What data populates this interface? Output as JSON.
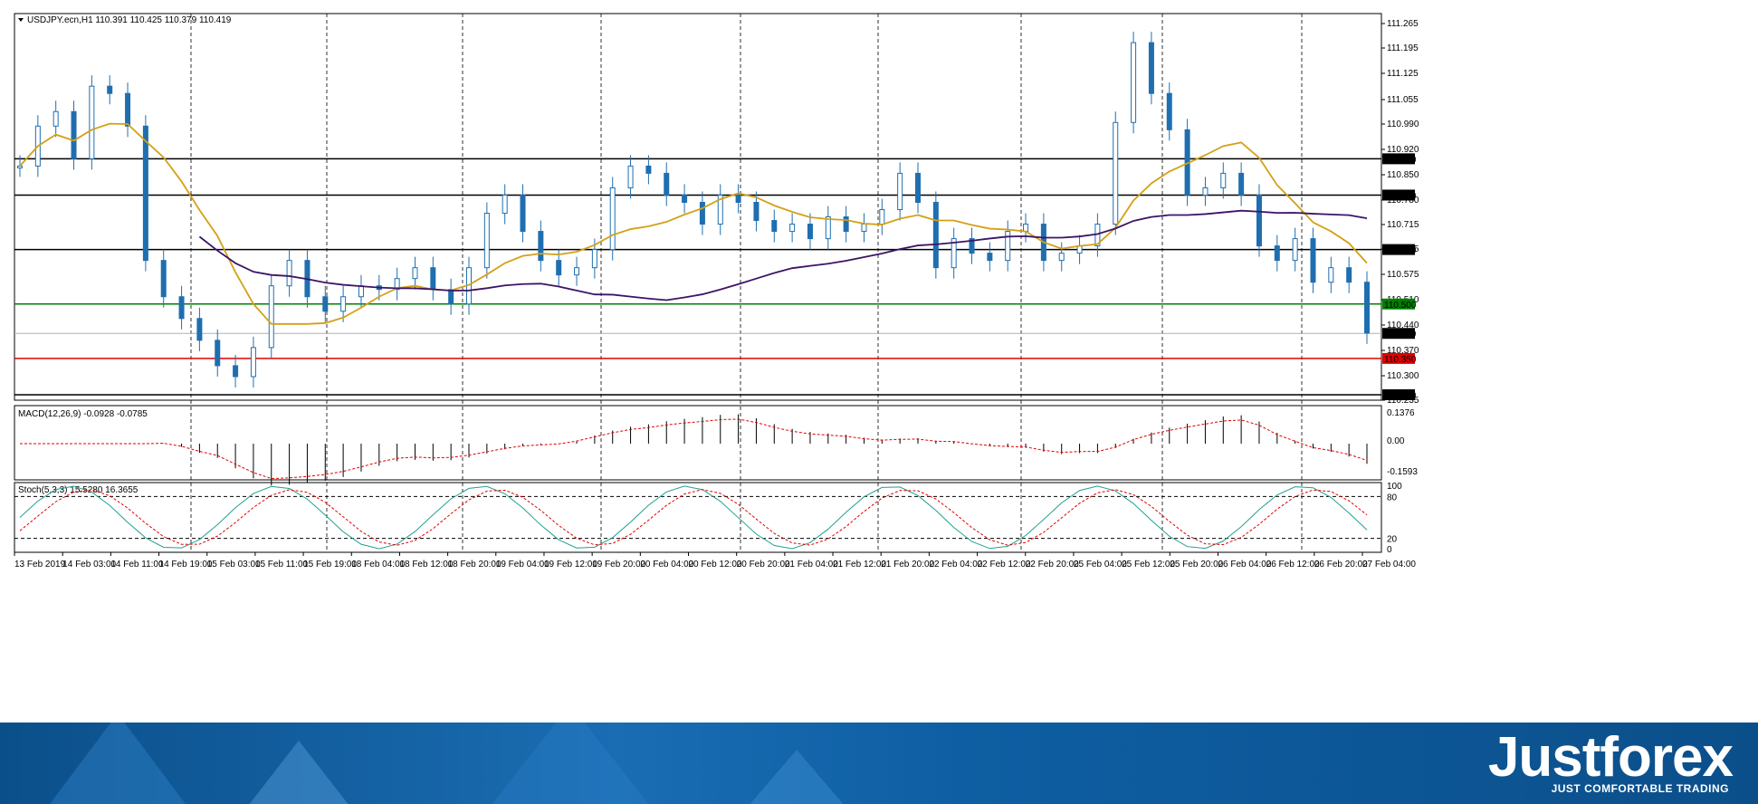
{
  "symbol_header": "USDJPY.ecn,H1  110.391 110.425 110.379 110.419",
  "price_axis": {
    "labels": [
      "111.265",
      "111.195",
      "111.125",
      "111.055",
      "110.990",
      "110.920",
      "110.850",
      "110.780",
      "110.715",
      "110.645",
      "110.575",
      "110.510",
      "110.440",
      "110.370",
      "110.300",
      "110.235"
    ],
    "levels": [
      {
        "value": 110.9,
        "label": "110.900",
        "color": "#000000"
      },
      {
        "value": 110.8,
        "label": "110.800",
        "color": "#000000"
      },
      {
        "value": 110.65,
        "label": "110.650",
        "color": "#000000"
      },
      {
        "value": 110.5,
        "label": "110.500",
        "color": "#008000"
      },
      {
        "value": 110.35,
        "label": "110.350",
        "color": "#e00000"
      },
      {
        "value": 110.25,
        "label": "110.250",
        "color": "#000000"
      }
    ],
    "current_price": "110.419"
  },
  "time_axis": [
    "13 Feb 2019",
    "14 Feb 03:00",
    "14 Feb 11:00",
    "14 Feb 19:00",
    "15 Feb 03:00",
    "15 Feb 11:00",
    "15 Feb 19:00",
    "18 Feb 04:00",
    "18 Feb 12:00",
    "18 Feb 20:00",
    "19 Feb 04:00",
    "19 Feb 12:00",
    "19 Feb 20:00",
    "20 Feb 04:00",
    "20 Feb 12:00",
    "20 Feb 20:00",
    "21 Feb 04:00",
    "21 Feb 12:00",
    "21 Feb 20:00",
    "22 Feb 04:00",
    "22 Feb 12:00",
    "22 Feb 20:00",
    "25 Feb 04:00",
    "25 Feb 12:00",
    "25 Feb 20:00",
    "26 Feb 04:00",
    "26 Feb 12:00",
    "26 Feb 20:00",
    "27 Feb 04:00"
  ],
  "macd": {
    "header": "MACD(12,26,9) -0.0928 -0.0785",
    "axis": [
      "0.1376",
      "0.00",
      "-0.1593"
    ]
  },
  "stoch": {
    "header": "Stoch(5,3,3) 15.5280 16.3655",
    "axis": [
      "100",
      "80",
      "20",
      "0"
    ]
  },
  "colors": {
    "bull": "#1f6fb0",
    "bear": "#1f6fb0",
    "ma_fast": "#d4a017",
    "ma_slow": "#3d1466",
    "signal": "#e00000",
    "stoch_main": "#20a090"
  },
  "chart_data": {
    "type": "candlestick",
    "symbol": "USDJPY.ecn",
    "timeframe": "H1",
    "ylim": [
      110.235,
      111.3
    ],
    "ohlc_approx": [
      110.88,
      110.99,
      111.03,
      110.9,
      111.1,
      111.08,
      110.99,
      110.62,
      110.52,
      110.46,
      110.4,
      110.33,
      110.3,
      110.38,
      110.55,
      110.62,
      110.52,
      110.48,
      110.52,
      110.55,
      110.54,
      110.57,
      110.6,
      110.54,
      110.5,
      110.6,
      110.75,
      110.8,
      110.7,
      110.62,
      110.58,
      110.6,
      110.65,
      110.82,
      110.88,
      110.86,
      110.8,
      110.78,
      110.72,
      110.8,
      110.78,
      110.73,
      110.7,
      110.72,
      110.68,
      110.74,
      110.7,
      110.72,
      110.76,
      110.86,
      110.78,
      110.6,
      110.68,
      110.64,
      110.62,
      110.7,
      110.72,
      110.62,
      110.64,
      110.66,
      110.72,
      111.0,
      111.22,
      111.08,
      110.98,
      110.8,
      110.82,
      110.86,
      110.8,
      110.66,
      110.62,
      110.68,
      110.56,
      110.6,
      110.56,
      110.42
    ]
  },
  "banner": {
    "logo": "Justforex",
    "tagline": "JUST COMFORTABLE TRADING"
  }
}
